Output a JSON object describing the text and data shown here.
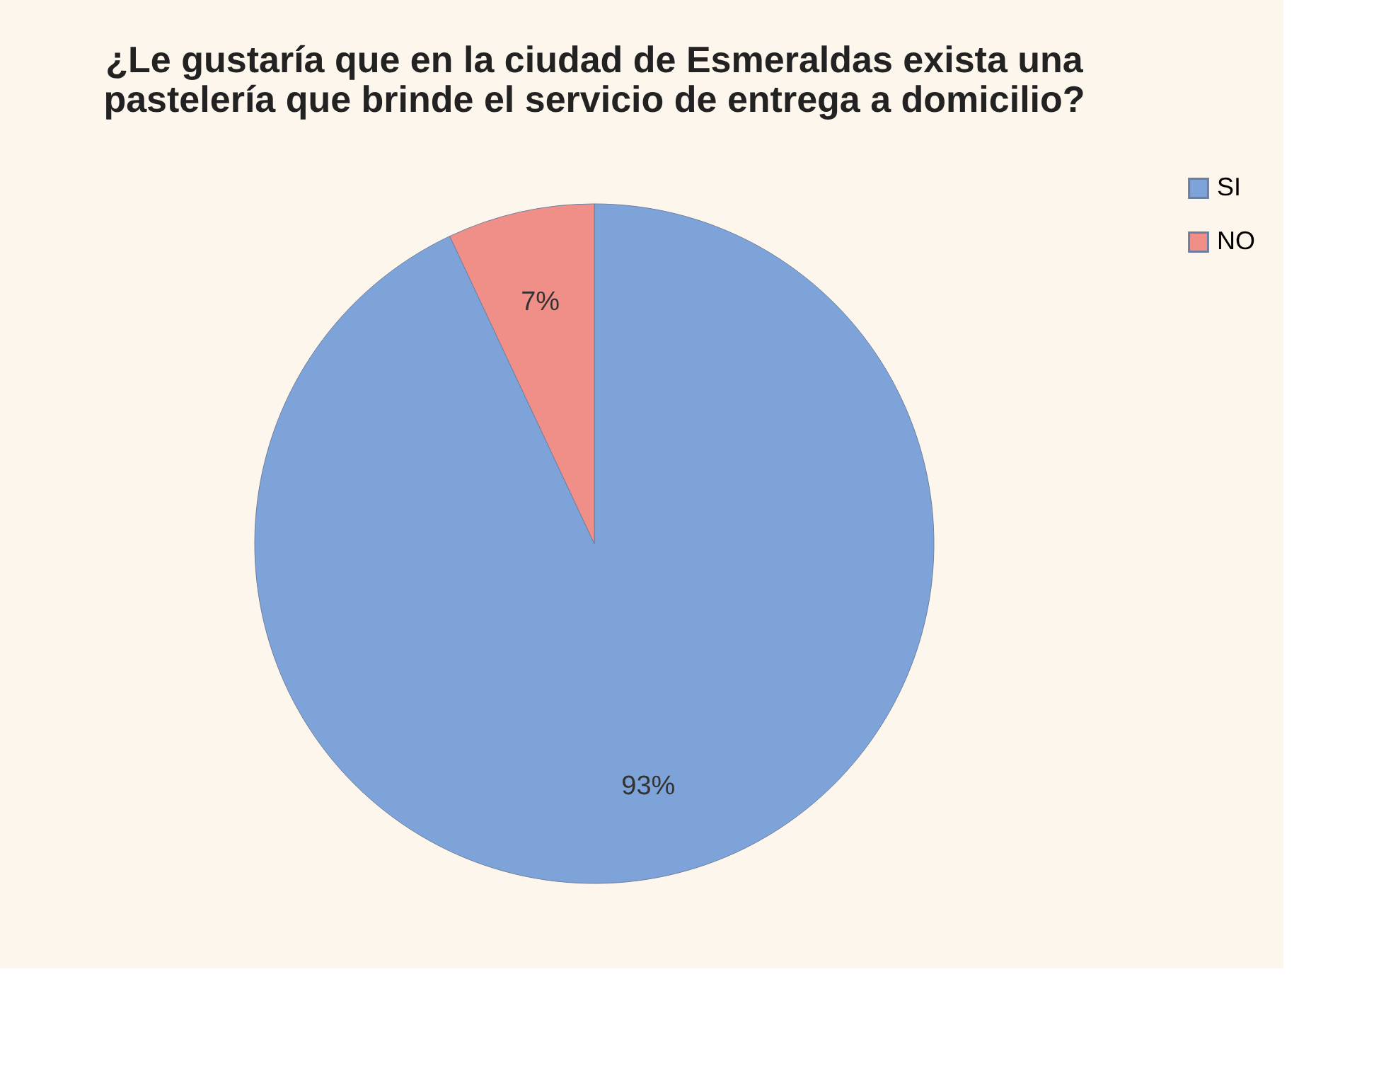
{
  "chart_data": {
    "type": "pie",
    "title": "¿Le gustaría que en la ciudad de Esmeraldas exista una pastelería que brinde el servicio de entrega a domicilio?",
    "categories": [
      "SI",
      "NO"
    ],
    "values": [
      93,
      7
    ],
    "colors": [
      "#7ea3d8",
      "#f08f88"
    ],
    "value_labels": [
      "93%",
      "7%"
    ],
    "legend": "right"
  }
}
